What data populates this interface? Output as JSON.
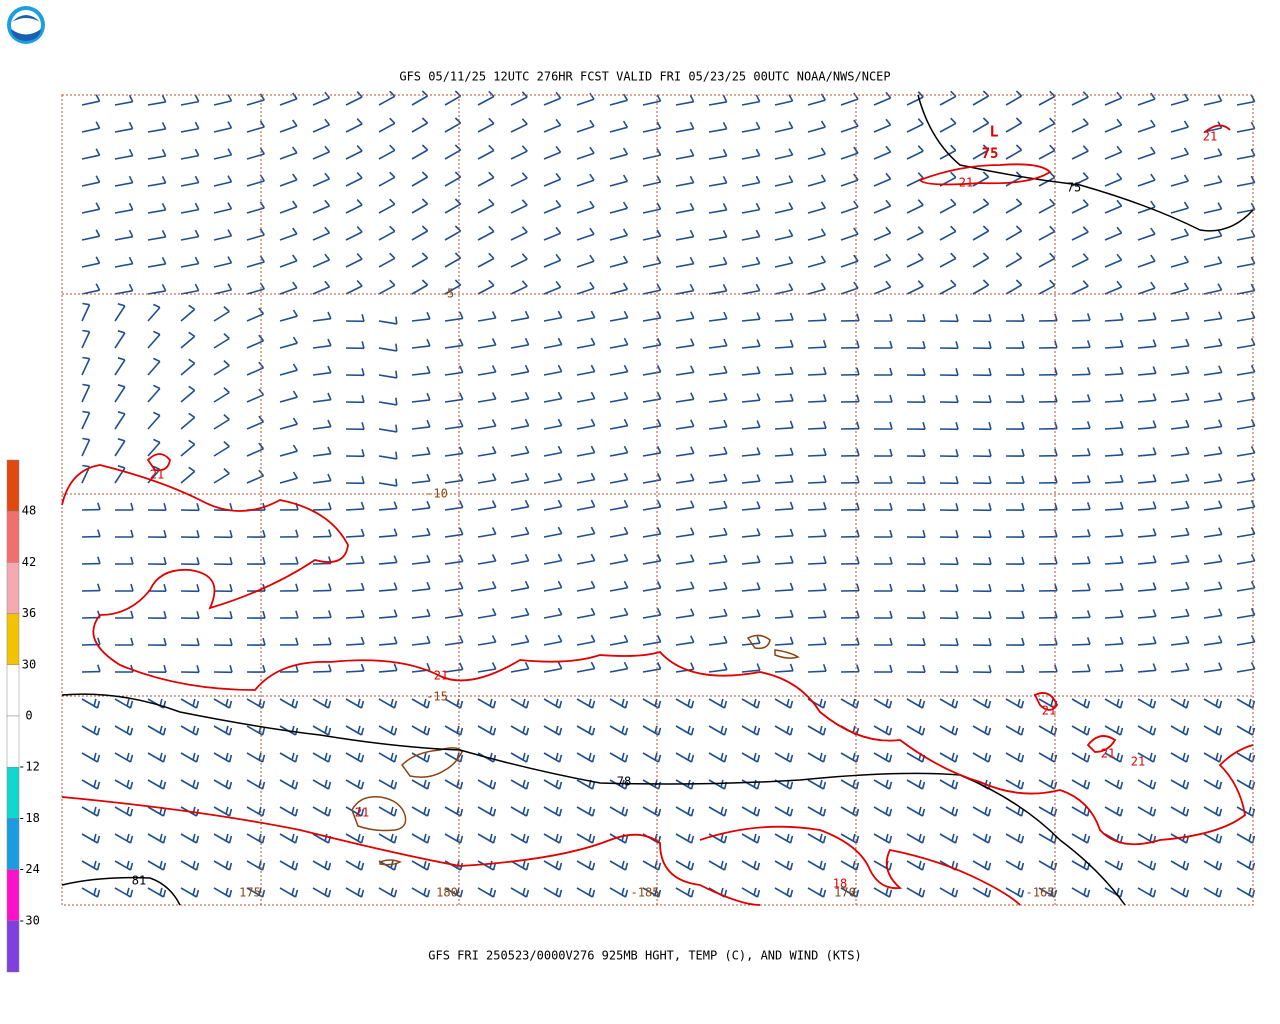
{
  "header": {
    "title": "GFS 05/11/25 12UTC 276HR FCST VALID FRI 05/23/25 00UTC NOAA/NWS/NCEP"
  },
  "footer": {
    "caption": "GFS FRI 250523/0000V276 925MB HGHT, TEMP (C), AND WIND (KTS)"
  },
  "colorbar": {
    "labels": [
      "48",
      "42",
      "36",
      "30",
      "0",
      "-12",
      "-18",
      "-24",
      "-30"
    ],
    "colors": [
      "#e04a10",
      "#f07070",
      "#f5aab0",
      "#f0c400",
      "#ffffff",
      "#ffffff",
      "#10d8d0",
      "#1a9de0",
      "#ff10c8",
      "#8040e0"
    ]
  },
  "map": {
    "grid_labels": [
      "-5",
      "-10",
      "-15",
      "175",
      "180",
      "-185",
      "170",
      "-165"
    ],
    "contour_labels": [
      "21",
      "21",
      "21",
      "21",
      "21",
      "21",
      "21",
      "21",
      "18",
      "75",
      "78",
      "81"
    ],
    "low": {
      "symbol": "L",
      "value": "75"
    }
  }
}
